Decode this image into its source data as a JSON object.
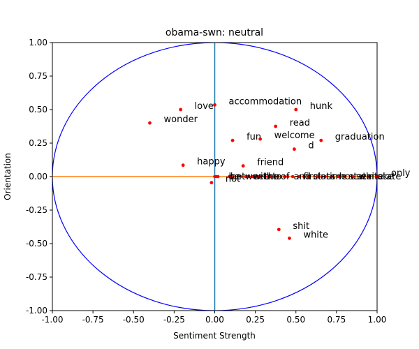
{
  "chart_data": {
    "type": "scatter",
    "title": "obama-swn: neutral",
    "xlabel": "Sentiment Strength",
    "ylabel": "Orientation",
    "xlim": [
      -1.0,
      1.0
    ],
    "ylim": [
      -1.0,
      1.0
    ],
    "x_ticks": [
      "-1.00",
      "-0.75",
      "-0.50",
      "-0.25",
      "0.00",
      "0.25",
      "0.50",
      "0.75",
      "1.00"
    ],
    "y_ticks": [
      "1.00",
      "0.75",
      "0.50",
      "0.25",
      "0.00",
      "-0.25",
      "-0.50",
      "-0.75",
      "-1.00"
    ],
    "grid": false,
    "unit_circle": true,
    "colors": {
      "points": "#ff0000",
      "circle": "#0000ff",
      "vertical_line": "#1f77b4",
      "horizontal_line": "#ff7f0e"
    },
    "points": [
      {
        "label": "love",
        "x": -0.21,
        "y": 0.5
      },
      {
        "label": "accommodation",
        "x": 0.0,
        "y": 0.535
      },
      {
        "label": "hunk",
        "x": 0.5,
        "y": 0.5
      },
      {
        "label": "wonder",
        "x": -0.4,
        "y": 0.4
      },
      {
        "label": "read",
        "x": 0.375,
        "y": 0.375
      },
      {
        "label": "fun",
        "x": 0.11,
        "y": 0.27
      },
      {
        "label": "welcome",
        "x": 0.28,
        "y": 0.28
      },
      {
        "label": "graduation",
        "x": 0.655,
        "y": 0.27
      },
      {
        "label": "d",
        "x": 0.49,
        "y": 0.205
      },
      {
        "label": "happy",
        "x": -0.195,
        "y": 0.085
      },
      {
        "label": "friend",
        "x": 0.175,
        "y": 0.08
      },
      {
        "label": "not",
        "x": -0.02,
        "y": -0.045
      },
      {
        "label": "only",
        "x": 1.0,
        "y": 0.0
      },
      {
        "label": "shit",
        "x": 0.395,
        "y": -0.395
      },
      {
        "label": "white",
        "x": 0.46,
        "y": -0.46
      }
    ],
    "cluster_labels": [
      {
        "label": "be",
        "x": 0.0,
        "y": 0.0
      },
      {
        "label": "between",
        "x": 0.01,
        "y": 0.0
      },
      {
        "label": "with",
        "x": 0.15,
        "y": 0.0
      },
      {
        "label": "the",
        "x": 0.22,
        "y": 0.0
      },
      {
        "label": "to",
        "x": 0.27,
        "y": 0.0
      },
      {
        "label": "of",
        "x": 0.32,
        "y": 0.0
      },
      {
        "label": "and",
        "x": 0.4,
        "y": 0.0
      },
      {
        "label": "first",
        "x": 0.46,
        "y": 0.0
      },
      {
        "label": "class",
        "x": 0.52,
        "y": 0.0
      },
      {
        "label": "time",
        "x": 0.6,
        "y": 0.0
      },
      {
        "label": "house",
        "x": 0.68,
        "y": 0.0
      },
      {
        "label": "state",
        "x": 0.74,
        "y": 0.0
      },
      {
        "label": "white",
        "x": 0.8,
        "y": 0.0
      },
      {
        "label": "make",
        "x": 0.86,
        "y": 0.0
      },
      {
        "label": "state",
        "x": 0.92,
        "y": 0.0
      }
    ],
    "cluster_points_x": [
      0.0,
      0.01,
      0.02,
      0.09,
      0.1,
      0.1,
      0.16,
      0.19,
      0.2,
      0.21,
      0.23,
      0.24,
      0.25,
      0.26,
      0.27,
      0.28,
      0.31,
      0.34,
      0.37,
      0.39,
      0.43,
      0.45,
      0.48,
      0.52,
      0.55,
      0.58,
      0.63,
      0.66,
      0.68,
      0.72,
      0.76,
      0.8,
      0.85,
      0.9,
      0.95
    ]
  }
}
